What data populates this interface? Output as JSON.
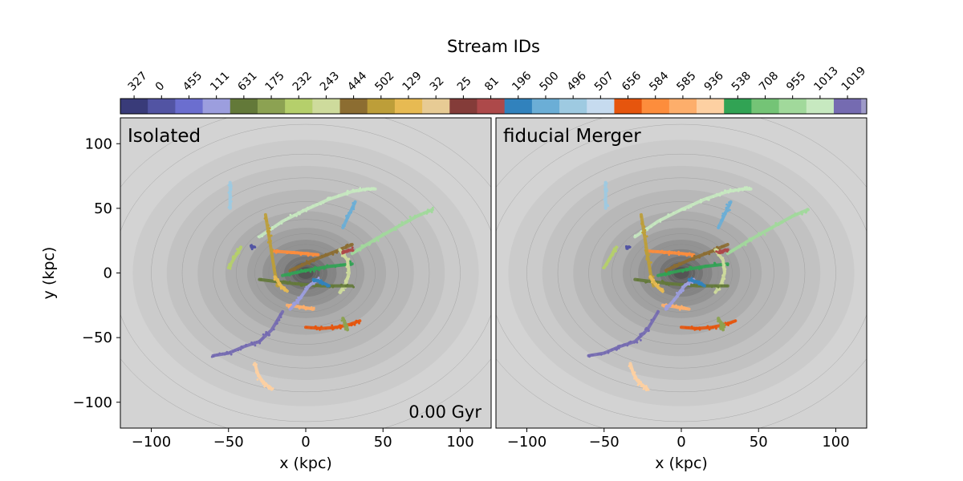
{
  "figure": {
    "colorbar_title": "Stream IDs",
    "colorbar_ids": [
      "327",
      "0",
      "455",
      "111",
      "631",
      "175",
      "232",
      "243",
      "444",
      "502",
      "129",
      "32",
      "25",
      "81",
      "196",
      "500",
      "496",
      "507",
      "656",
      "584",
      "585",
      "936",
      "538",
      "708",
      "955",
      "1013",
      "1019"
    ],
    "colorbar_colors": [
      "#393b79",
      "#5254a3",
      "#6b6ecf",
      "#9c9ede",
      "#637939",
      "#8ca252",
      "#b5cf6b",
      "#cedb9c",
      "#8c6d31",
      "#bd9e39",
      "#e7ba52",
      "#e7cb94",
      "#843c39",
      "#ad494a",
      "#3182bd",
      "#6baed6",
      "#9ecae1",
      "#c6dbef",
      "#e6550d",
      "#fd8d3c",
      "#fdae6b",
      "#fdd0a2",
      "#31a354",
      "#74c476",
      "#a1d99b",
      "#c7e9c0",
      "#756bb1"
    ]
  },
  "chart_data": [
    {
      "type": "scatter",
      "panel_label": "Isolated",
      "time_label": "0.00 Gyr",
      "xlabel": "x (kpc)",
      "ylabel": "y (kpc)",
      "xlim": [
        -120,
        120
      ],
      "ylim": [
        -120,
        120
      ],
      "xticks": [
        -100,
        -50,
        0,
        50,
        100
      ],
      "yticks": [
        -100,
        -50,
        0,
        50,
        100
      ],
      "background": "grey density contours of host halo centred at (0, 0)",
      "streams": [
        {
          "id": "1013",
          "color": "#c7e9c0",
          "x": [
            -30,
            -15,
            0,
            15,
            30,
            40,
            45
          ],
          "y": [
            28,
            40,
            49,
            57,
            63,
            65,
            65
          ]
        },
        {
          "id": "955",
          "color": "#a1d99b",
          "x": [
            30,
            45,
            60,
            72,
            82
          ],
          "y": [
            15,
            26,
            36,
            44,
            49
          ]
        },
        {
          "id": "1019",
          "color": "#756bb1",
          "x": [
            -60,
            -50,
            -40,
            -30,
            -22,
            -15
          ],
          "y": [
            -64,
            -62,
            -57,
            -53,
            -44,
            -30
          ]
        },
        {
          "id": "936",
          "color": "#fdd0a2",
          "x": [
            -33,
            -31,
            -28,
            -24,
            -22
          ],
          "y": [
            -70,
            -78,
            -84,
            -88,
            -90
          ]
        },
        {
          "id": "656",
          "color": "#e6550d",
          "x": [
            0,
            10,
            20,
            28,
            35
          ],
          "y": [
            -42,
            -43,
            -42,
            -40,
            -37
          ]
        },
        {
          "id": "585",
          "color": "#fdae6b",
          "x": [
            -12,
            -5,
            0,
            5
          ],
          "y": [
            -25,
            -26,
            -27,
            -28
          ]
        },
        {
          "id": "584",
          "color": "#fd8d3c",
          "x": [
            -22,
            -10,
            0,
            8
          ],
          "y": [
            17,
            16,
            15,
            14
          ]
        },
        {
          "id": "538",
          "color": "#31a354",
          "x": [
            -15,
            0,
            15,
            30
          ],
          "y": [
            -2,
            2,
            5,
            7
          ]
        },
        {
          "id": "444",
          "color": "#8c6d31",
          "x": [
            -10,
            5,
            20,
            30
          ],
          "y": [
            2,
            10,
            17,
            22
          ]
        },
        {
          "id": "502",
          "color": "#bd9e39",
          "x": [
            -26,
            -24,
            -22,
            -20,
            -18
          ],
          "y": [
            45,
            30,
            15,
            0,
            -10
          ]
        },
        {
          "id": "243",
          "color": "#cedb9c",
          "x": [
            22,
            27,
            28,
            26,
            22
          ],
          "y": [
            18,
            10,
            0,
            -8,
            -15
          ]
        },
        {
          "id": "232",
          "color": "#b5cf6b",
          "x": [
            -50,
            -45,
            -42
          ],
          "y": [
            4,
            14,
            20
          ]
        },
        {
          "id": "175",
          "color": "#8ca252",
          "x": [
            24,
            26,
            27
          ],
          "y": [
            -35,
            -40,
            -44
          ]
        },
        {
          "id": "631",
          "color": "#637939",
          "x": [
            -30,
            -10,
            10,
            30
          ],
          "y": [
            -5,
            -8,
            -10,
            -10
          ]
        },
        {
          "id": "496",
          "color": "#9ecae1",
          "x": [
            -49,
            -49,
            -49
          ],
          "y": [
            50,
            60,
            70
          ]
        },
        {
          "id": "500",
          "color": "#6baed6",
          "x": [
            24,
            28,
            32
          ],
          "y": [
            35,
            45,
            55
          ]
        },
        {
          "id": "81",
          "color": "#ad494a",
          "x": [
            24,
            27,
            30
          ],
          "y": [
            16,
            17,
            18
          ]
        },
        {
          "id": "0",
          "color": "#5254a3",
          "x": [
            -35,
            -34
          ],
          "y": [
            20,
            20
          ]
        },
        {
          "id": "111",
          "color": "#9c9ede",
          "x": [
            -10,
            -4,
            2,
            8
          ],
          "y": [
            -28,
            -20,
            -10,
            -5
          ]
        },
        {
          "id": "129",
          "color": "#e7ba52",
          "x": [
            -20,
            -16,
            -12
          ],
          "y": [
            -3,
            -10,
            -14
          ]
        },
        {
          "id": "196",
          "color": "#3182bd",
          "x": [
            5,
            10,
            15
          ],
          "y": [
            -5,
            -7,
            -10
          ]
        }
      ]
    },
    {
      "type": "scatter",
      "panel_label": "fiducial Merger",
      "xlabel": "x (kpc)",
      "xlim": [
        -120,
        120
      ],
      "ylim": [
        -120,
        120
      ],
      "xticks": [
        -100,
        -50,
        0,
        50,
        100
      ],
      "background": "grey density contours of host halo centred at (0, 0)",
      "streams": [
        {
          "id": "1013",
          "color": "#c7e9c0",
          "x": [
            -30,
            -15,
            0,
            15,
            30,
            40,
            45
          ],
          "y": [
            28,
            40,
            49,
            57,
            63,
            65,
            65
          ]
        },
        {
          "id": "955",
          "color": "#a1d99b",
          "x": [
            30,
            45,
            60,
            72,
            82
          ],
          "y": [
            15,
            26,
            36,
            44,
            49
          ]
        },
        {
          "id": "1019",
          "color": "#756bb1",
          "x": [
            -60,
            -50,
            -40,
            -30,
            -22,
            -15
          ],
          "y": [
            -64,
            -62,
            -57,
            -53,
            -44,
            -30
          ]
        },
        {
          "id": "936",
          "color": "#fdd0a2",
          "x": [
            -33,
            -31,
            -28,
            -24,
            -22
          ],
          "y": [
            -70,
            -78,
            -84,
            -88,
            -90
          ]
        },
        {
          "id": "656",
          "color": "#e6550d",
          "x": [
            0,
            10,
            20,
            28,
            35
          ],
          "y": [
            -42,
            -43,
            -42,
            -40,
            -37
          ]
        },
        {
          "id": "585",
          "color": "#fdae6b",
          "x": [
            -12,
            -5,
            0,
            5
          ],
          "y": [
            -25,
            -26,
            -27,
            -28
          ]
        },
        {
          "id": "584",
          "color": "#fd8d3c",
          "x": [
            -22,
            -10,
            0,
            8
          ],
          "y": [
            17,
            16,
            15,
            14
          ]
        },
        {
          "id": "538",
          "color": "#31a354",
          "x": [
            -15,
            0,
            15,
            30
          ],
          "y": [
            -2,
            2,
            5,
            7
          ]
        },
        {
          "id": "444",
          "color": "#8c6d31",
          "x": [
            -10,
            5,
            20,
            30
          ],
          "y": [
            2,
            10,
            17,
            22
          ]
        },
        {
          "id": "502",
          "color": "#bd9e39",
          "x": [
            -26,
            -24,
            -22,
            -20,
            -18
          ],
          "y": [
            45,
            30,
            15,
            0,
            -10
          ]
        },
        {
          "id": "243",
          "color": "#cedb9c",
          "x": [
            22,
            27,
            28,
            26,
            22
          ],
          "y": [
            18,
            10,
            0,
            -8,
            -15
          ]
        },
        {
          "id": "232",
          "color": "#b5cf6b",
          "x": [
            -50,
            -45,
            -42
          ],
          "y": [
            4,
            14,
            20
          ]
        },
        {
          "id": "175",
          "color": "#8ca252",
          "x": [
            24,
            26,
            27
          ],
          "y": [
            -35,
            -40,
            -44
          ]
        },
        {
          "id": "631",
          "color": "#637939",
          "x": [
            -30,
            -10,
            10,
            30
          ],
          "y": [
            -5,
            -8,
            -10,
            -10
          ]
        },
        {
          "id": "496",
          "color": "#9ecae1",
          "x": [
            -49,
            -49,
            -49
          ],
          "y": [
            50,
            60,
            70
          ]
        },
        {
          "id": "500",
          "color": "#6baed6",
          "x": [
            24,
            28,
            32
          ],
          "y": [
            35,
            45,
            55
          ]
        },
        {
          "id": "81",
          "color": "#ad494a",
          "x": [
            24,
            27,
            30
          ],
          "y": [
            16,
            17,
            18
          ]
        },
        {
          "id": "0",
          "color": "#5254a3",
          "x": [
            -35,
            -34
          ],
          "y": [
            20,
            20
          ]
        },
        {
          "id": "111",
          "color": "#9c9ede",
          "x": [
            -10,
            -4,
            2,
            8
          ],
          "y": [
            -28,
            -20,
            -10,
            -5
          ]
        },
        {
          "id": "129",
          "color": "#e7ba52",
          "x": [
            -20,
            -16,
            -12
          ],
          "y": [
            -3,
            -10,
            -14
          ]
        },
        {
          "id": "196",
          "color": "#3182bd",
          "x": [
            5,
            10,
            15
          ],
          "y": [
            -5,
            -7,
            -10
          ]
        }
      ]
    }
  ]
}
